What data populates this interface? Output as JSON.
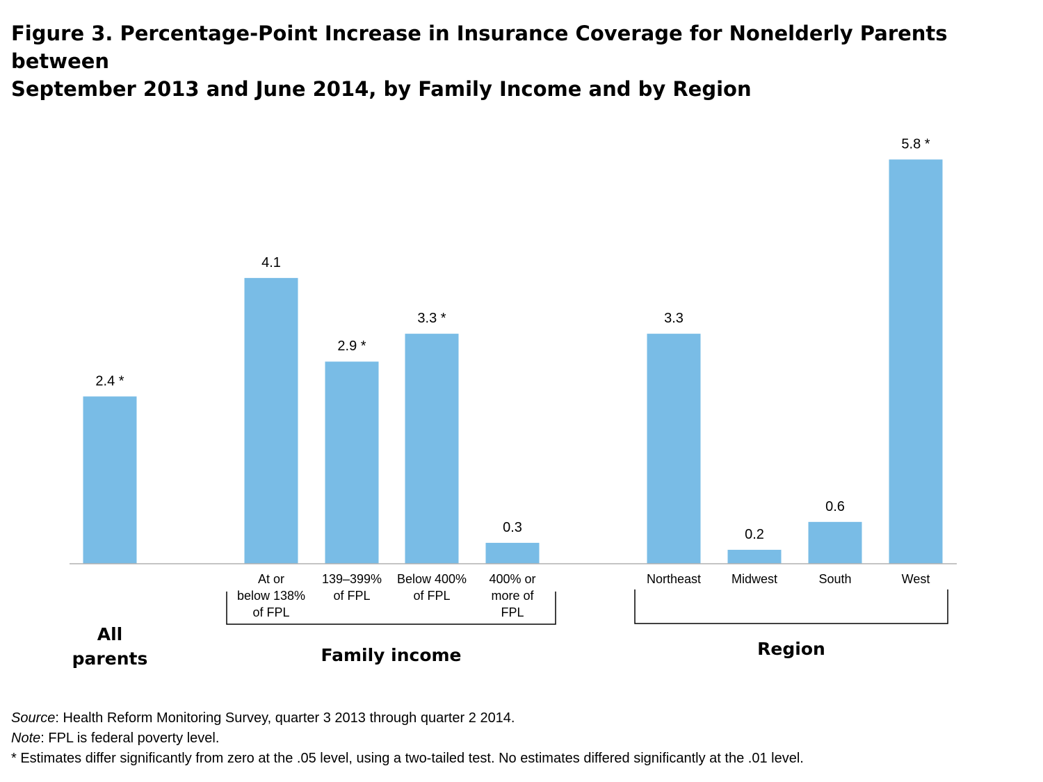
{
  "title_lines": [
    "Figure 3. Percentage-Point Increase in Insurance Coverage for Nonelderly Parents between",
    "September 2013 and June 2014, by Family Income and by Region"
  ],
  "chart_data": {
    "type": "bar",
    "title": "Figure 3. Percentage-Point Increase in Insurance Coverage for Nonelderly Parents between September 2013 and June 2014, by Family Income and by Region",
    "categories": [
      [
        "All",
        "parents"
      ],
      [
        "At or",
        "below 138%",
        "of FPL"
      ],
      [
        "139–399%",
        "of FPL"
      ],
      [
        "Below 400%",
        "of FPL"
      ],
      [
        "400% or",
        "more of",
        "FPL"
      ],
      [
        "Northeast"
      ],
      [
        "Midwest"
      ],
      [
        "South"
      ],
      [
        "West"
      ]
    ],
    "values": [
      2.4,
      4.1,
      2.9,
      3.3,
      0.3,
      3.3,
      0.2,
      0.6,
      5.8
    ],
    "data_labels": [
      "2.4 *",
      "4.1",
      "2.9 *",
      "3.3 *",
      "0.3",
      "3.3",
      "0.2",
      "0.6",
      "5.8 *"
    ],
    "groups": [
      {
        "label": "Family income",
        "members": [
          1,
          2,
          3,
          4
        ]
      },
      {
        "label": "Region",
        "members": [
          5,
          6,
          7,
          8
        ]
      }
    ],
    "ylim": [
      0,
      7.4
    ],
    "grid": false,
    "legend": "none",
    "bar_color": "#79bce6"
  },
  "notes": {
    "source_label": "Source",
    "source_text": ": Health Reform Monitoring Survey, quarter 3 2013 through quarter 2 2014.",
    "note_label": "Note",
    "note_text": ": FPL is federal poverty level.",
    "asterisk_text": "* Estimates differ significantly from zero at the .05 level, using a two-tailed test. No estimates differed significantly at the .01 level."
  }
}
